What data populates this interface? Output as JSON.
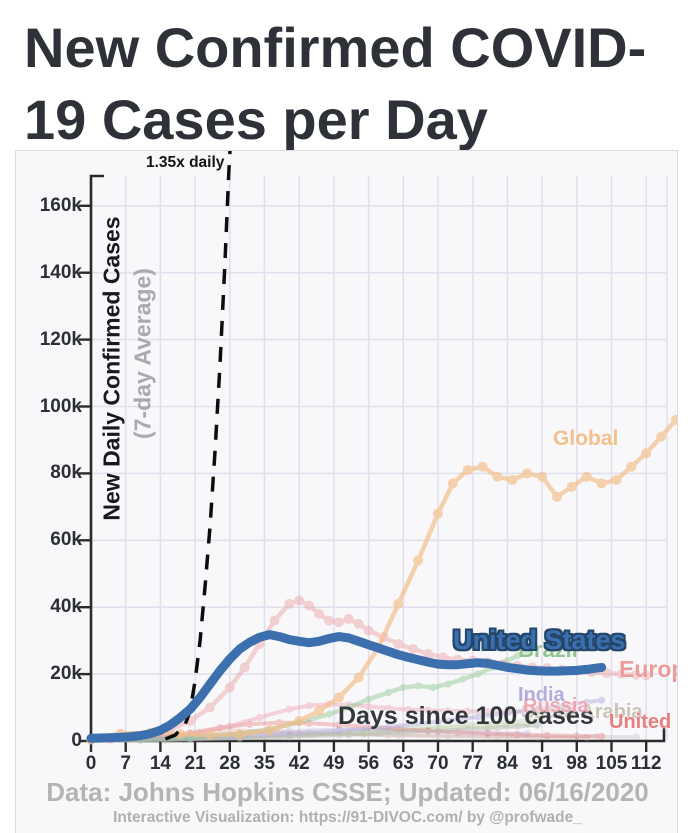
{
  "page": {
    "title": "New Confirmed COVID-19 Cases per Day"
  },
  "footer": {
    "source": "Data: Johns Hopkins CSSE; Updated: 06/16/2020",
    "credit": "Interactive Visualization: https://91-DIVOC.com/ by @profwade_"
  },
  "colors": {
    "page_bg": "#ffffff",
    "card_bg": "#f8f8fa",
    "card_border": "#dcdcdc",
    "grid": "#e1e1ee",
    "axis": "#2b2b2b",
    "tick_text": "#2c3036",
    "title_text": "#2e3238",
    "footer_text": "#b4b4b6",
    "us_accent": "#3b6fad"
  },
  "chart_data": {
    "type": "line",
    "title": "New Confirmed COVID-19 Cases per Day",
    "xlabel": "Days since 100 cases",
    "ylabel": "New Daily Confirmed Cases",
    "ylabel_sub": "(7-day Average)",
    "x_ticks": [
      0,
      7,
      14,
      21,
      28,
      35,
      42,
      49,
      56,
      63,
      70,
      77,
      84,
      91,
      98,
      105,
      112
    ],
    "y_tick_values_k": [
      0,
      20,
      40,
      60,
      80,
      100,
      120,
      140,
      160
    ],
    "y_tick_labels": [
      "0",
      "20k",
      "40k",
      "60k",
      "80k",
      "100k",
      "120k",
      "140k",
      "160k"
    ],
    "xlim_days": [
      0,
      118
    ],
    "ylim_cases_k": [
      0,
      170
    ],
    "grid": true,
    "values_unit": "thousands of new daily cases (7-day average)",
    "reference_line": {
      "label": "1.35x daily",
      "style": "dashed-black",
      "points_day_k": [
        [
          15,
          0.6
        ],
        [
          17,
          1.8
        ],
        [
          19,
          5
        ],
        [
          20,
          9
        ],
        [
          21,
          18
        ],
        [
          22,
          30
        ],
        [
          23,
          46
        ],
        [
          24,
          64
        ],
        [
          25,
          86
        ],
        [
          26,
          112
        ],
        [
          27,
          142
        ],
        [
          27.8,
          170
        ],
        [
          28.1,
          178
        ]
      ]
    },
    "series": [
      {
        "name": "",
        "label_visible": false,
        "color": "#aaaab4",
        "opacity": 0.28,
        "width": 3.5,
        "markers": true,
        "points_day_k": [
          [
            0,
            0.2
          ],
          [
            12,
            0.9
          ],
          [
            22,
            1.8
          ],
          [
            32,
            2.4
          ],
          [
            42,
            2.2
          ],
          [
            52,
            1.9
          ],
          [
            62,
            1.7
          ],
          [
            72,
            1.5
          ],
          [
            82,
            1.4
          ],
          [
            92,
            1.3
          ],
          [
            102,
            1.25
          ],
          [
            110,
            1.2
          ]
        ]
      },
      {
        "name": "",
        "label_visible": false,
        "color": "#e0a090",
        "opacity": 0.28,
        "width": 3.5,
        "markers": true,
        "points_day_k": [
          [
            0,
            0.3
          ],
          [
            10,
            1
          ],
          [
            20,
            2.2
          ],
          [
            28,
            3.2
          ],
          [
            36,
            3
          ],
          [
            44,
            2.4
          ],
          [
            52,
            2
          ],
          [
            60,
            1.7
          ],
          [
            70,
            1.4
          ],
          [
            80,
            1.2
          ],
          [
            90,
            1.1
          ],
          [
            100,
            1
          ]
        ]
      },
      {
        "name": "",
        "label_visible": false,
        "color": "#7ab8c0",
        "opacity": 0.28,
        "width": 3.5,
        "markers": true,
        "points_day_k": [
          [
            0,
            0.1
          ],
          [
            20,
            0.5
          ],
          [
            40,
            1.2
          ],
          [
            55,
            2
          ],
          [
            68,
            3
          ],
          [
            80,
            4
          ],
          [
            90,
            4.8
          ]
        ]
      },
      {
        "name": "",
        "label_visible": false,
        "color": "#b9b870",
        "opacity": 0.28,
        "width": 3.5,
        "markers": true,
        "points_day_k": [
          [
            0,
            0.1
          ],
          [
            20,
            0.6
          ],
          [
            40,
            1.5
          ],
          [
            55,
            2.5
          ],
          [
            70,
            3.8
          ],
          [
            80,
            4.6
          ],
          [
            88,
            5.2
          ]
        ]
      },
      {
        "name": "",
        "label_visible": false,
        "color": "#a49ad0",
        "opacity": 0.28,
        "width": 3.5,
        "markers": true,
        "points_day_k": [
          [
            0,
            0.2
          ],
          [
            15,
            0.8
          ],
          [
            30,
            2
          ],
          [
            40,
            3
          ],
          [
            50,
            3.5
          ],
          [
            60,
            3.2
          ],
          [
            70,
            2.8
          ],
          [
            80,
            2.4
          ],
          [
            88,
            2.2
          ]
        ]
      },
      {
        "name": "",
        "label_visible": false,
        "color": "#98c88c",
        "opacity": 0.25,
        "width": 3.5,
        "markers": true,
        "points_day_k": [
          [
            0,
            0.1
          ],
          [
            15,
            0.4
          ],
          [
            30,
            1
          ],
          [
            45,
            2
          ],
          [
            58,
            3.2
          ],
          [
            68,
            4.2
          ],
          [
            76,
            5
          ],
          [
            84,
            5.8
          ],
          [
            90,
            6.4
          ]
        ]
      },
      {
        "name": "United Kingdom",
        "label_visible": true,
        "color": "#e77f7f",
        "opacity": 0.4,
        "width": 4,
        "markers": true,
        "points_day_k": [
          [
            0,
            0.2
          ],
          [
            8,
            0.6
          ],
          [
            14,
            1.2
          ],
          [
            20,
            2.4
          ],
          [
            26,
            4
          ],
          [
            32,
            5
          ],
          [
            38,
            5.5
          ],
          [
            44,
            5.3
          ],
          [
            50,
            4.8
          ],
          [
            56,
            4.2
          ],
          [
            62,
            3.6
          ],
          [
            68,
            3
          ],
          [
            74,
            2.6
          ],
          [
            80,
            2.2
          ],
          [
            86,
            1.9
          ],
          [
            92,
            1.7
          ],
          [
            98,
            1.5
          ],
          [
            103,
            1.4
          ]
        ]
      },
      {
        "name": "Saudi Arabia",
        "label_visible": true,
        "color": "#c9c3b4",
        "opacity": 0.45,
        "width": 4,
        "markers": true,
        "points_day_k": [
          [
            0,
            0.1
          ],
          [
            15,
            0.3
          ],
          [
            30,
            0.8
          ],
          [
            40,
            1.3
          ],
          [
            50,
            1.8
          ],
          [
            58,
            2.2
          ],
          [
            64,
            2.6
          ],
          [
            70,
            3
          ],
          [
            76,
            3.4
          ],
          [
            82,
            3.9
          ],
          [
            86,
            4.3
          ],
          [
            90,
            4.7
          ]
        ]
      },
      {
        "name": "Russia",
        "label_visible": true,
        "color": "#f0a4b4",
        "opacity": 0.45,
        "width": 4,
        "markers": true,
        "points_day_k": [
          [
            0,
            0.1
          ],
          [
            10,
            0.5
          ],
          [
            16,
            1.2
          ],
          [
            22,
            2.5
          ],
          [
            28,
            4.5
          ],
          [
            34,
            7
          ],
          [
            40,
            9.5
          ],
          [
            44,
            10.6
          ],
          [
            48,
            11
          ],
          [
            52,
            10.8
          ],
          [
            56,
            10.3
          ],
          [
            60,
            9.8
          ],
          [
            64,
            9.4
          ],
          [
            68,
            9.2
          ],
          [
            72,
            9
          ],
          [
            76,
            8.9
          ],
          [
            80,
            8.8
          ],
          [
            84,
            8.8
          ],
          [
            88,
            8.7
          ],
          [
            95,
            8.7
          ]
        ]
      },
      {
        "name": "India",
        "label_visible": true,
        "color": "#b4acda",
        "opacity": 0.5,
        "width": 4,
        "markers": true,
        "points_day_k": [
          [
            0,
            0.1
          ],
          [
            10,
            0.3
          ],
          [
            20,
            0.7
          ],
          [
            30,
            1.3
          ],
          [
            40,
            2
          ],
          [
            50,
            3
          ],
          [
            60,
            4.2
          ],
          [
            70,
            5.8
          ],
          [
            78,
            7.2
          ],
          [
            84,
            8.4
          ],
          [
            90,
            9.6
          ],
          [
            96,
            10.8
          ],
          [
            100,
            11.6
          ],
          [
            103,
            12.2
          ]
        ]
      },
      {
        "name": "Brazil",
        "label_visible": true,
        "color": "#8cc68c",
        "opacity": 0.45,
        "width": 4.5,
        "markers": true,
        "points_day_k": [
          [
            0,
            0.2
          ],
          [
            10,
            0.4
          ],
          [
            20,
            1
          ],
          [
            30,
            2.2
          ],
          [
            36,
            3.5
          ],
          [
            42,
            5.5
          ],
          [
            48,
            8
          ],
          [
            52,
            10
          ],
          [
            56,
            12.5
          ],
          [
            60,
            14.5
          ],
          [
            63,
            16
          ],
          [
            66,
            16.5
          ],
          [
            69,
            16
          ],
          [
            72,
            17
          ],
          [
            75,
            18.5
          ],
          [
            78,
            20
          ],
          [
            81,
            22
          ],
          [
            84,
            24
          ],
          [
            86,
            25.5
          ],
          [
            88,
            26.5
          ]
        ]
      },
      {
        "name": "Europe",
        "label_visible": true,
        "color": "#ec9a9a",
        "opacity": 0.42,
        "width": 4.5,
        "markers": true,
        "points_day_k": [
          [
            0,
            0.4
          ],
          [
            4,
            0.7
          ],
          [
            8,
            1.2
          ],
          [
            12,
            2
          ],
          [
            16,
            3.5
          ],
          [
            20,
            6
          ],
          [
            24,
            10
          ],
          [
            28,
            16
          ],
          [
            31,
            22
          ],
          [
            34,
            29
          ],
          [
            37,
            36
          ],
          [
            40,
            41
          ],
          [
            42,
            42
          ],
          [
            44,
            40.5
          ],
          [
            46,
            38
          ],
          [
            48,
            36
          ],
          [
            50,
            35.5
          ],
          [
            52,
            36.5
          ],
          [
            54,
            35
          ],
          [
            56,
            33
          ],
          [
            59,
            31
          ],
          [
            62,
            29
          ],
          [
            65,
            27.5
          ],
          [
            68,
            26
          ],
          [
            71,
            25
          ],
          [
            74,
            24.3
          ],
          [
            77,
            24
          ],
          [
            80,
            23.5
          ],
          [
            83,
            23
          ],
          [
            86,
            22.5
          ],
          [
            89,
            22
          ],
          [
            92,
            21.8
          ],
          [
            95,
            21.3
          ],
          [
            98,
            21
          ],
          [
            101,
            20.6
          ],
          [
            104,
            20.3
          ],
          [
            107,
            20
          ],
          [
            110,
            19.8
          ],
          [
            112,
            19.6
          ]
        ]
      },
      {
        "name": "Global",
        "label_visible": true,
        "color": "#f3c08c",
        "opacity": 0.7,
        "width": 4.5,
        "markers": true,
        "points_day_k": [
          [
            0,
            0.6
          ],
          [
            6,
            2.2
          ],
          [
            12,
            2.5
          ],
          [
            18,
            2.1
          ],
          [
            24,
            1.8
          ],
          [
            30,
            2
          ],
          [
            36,
            3.2
          ],
          [
            42,
            6
          ],
          [
            46,
            9
          ],
          [
            50,
            13
          ],
          [
            54,
            19
          ],
          [
            58,
            28
          ],
          [
            62,
            41
          ],
          [
            66,
            54
          ],
          [
            70,
            68
          ],
          [
            73,
            77
          ],
          [
            76,
            81
          ],
          [
            79,
            82
          ],
          [
            82,
            79
          ],
          [
            85,
            78
          ],
          [
            88,
            80
          ],
          [
            91,
            79
          ],
          [
            94,
            73
          ],
          [
            97,
            76
          ],
          [
            100,
            79
          ],
          [
            103,
            77
          ],
          [
            106,
            78
          ],
          [
            109,
            82
          ],
          [
            112,
            86
          ],
          [
            115,
            91
          ],
          [
            118,
            96
          ]
        ]
      },
      {
        "name": "United States",
        "label_visible": true,
        "color": "#3b6fad",
        "opacity": 1,
        "width": 9,
        "markers": false,
        "points_day_k": [
          [
            0,
            0.8
          ],
          [
            2,
            0.9
          ],
          [
            4,
            1
          ],
          [
            6,
            1.1
          ],
          [
            8,
            1.3
          ],
          [
            10,
            1.6
          ],
          [
            12,
            2.2
          ],
          [
            14,
            3.2
          ],
          [
            16,
            4.8
          ],
          [
            18,
            7
          ],
          [
            20,
            9.5
          ],
          [
            22,
            13
          ],
          [
            24,
            17
          ],
          [
            26,
            21
          ],
          [
            28,
            24.5
          ],
          [
            30,
            27.5
          ],
          [
            32,
            29.5
          ],
          [
            34,
            31
          ],
          [
            36,
            31.8
          ],
          [
            38,
            31.2
          ],
          [
            40,
            30.3
          ],
          [
            42,
            29.8
          ],
          [
            44,
            29.4
          ],
          [
            46,
            29.8
          ],
          [
            48,
            30.6
          ],
          [
            50,
            31.2
          ],
          [
            52,
            30.8
          ],
          [
            54,
            29.8
          ],
          [
            56,
            28.8
          ],
          [
            58,
            27.8
          ],
          [
            60,
            26.8
          ],
          [
            62,
            25.8
          ],
          [
            64,
            25
          ],
          [
            66,
            24.3
          ],
          [
            68,
            23.6
          ],
          [
            70,
            23
          ],
          [
            72,
            22.8
          ],
          [
            74,
            22.8
          ],
          [
            76,
            23.1
          ],
          [
            78,
            23.4
          ],
          [
            80,
            23.2
          ],
          [
            82,
            22.6
          ],
          [
            84,
            22
          ],
          [
            86,
            21.6
          ],
          [
            88,
            21.2
          ],
          [
            90,
            21
          ],
          [
            92,
            20.9
          ],
          [
            94,
            20.9
          ],
          [
            96,
            21
          ],
          [
            98,
            21.1
          ],
          [
            100,
            21.4
          ],
          [
            102,
            21.8
          ],
          [
            103,
            22
          ]
        ]
      }
    ]
  }
}
